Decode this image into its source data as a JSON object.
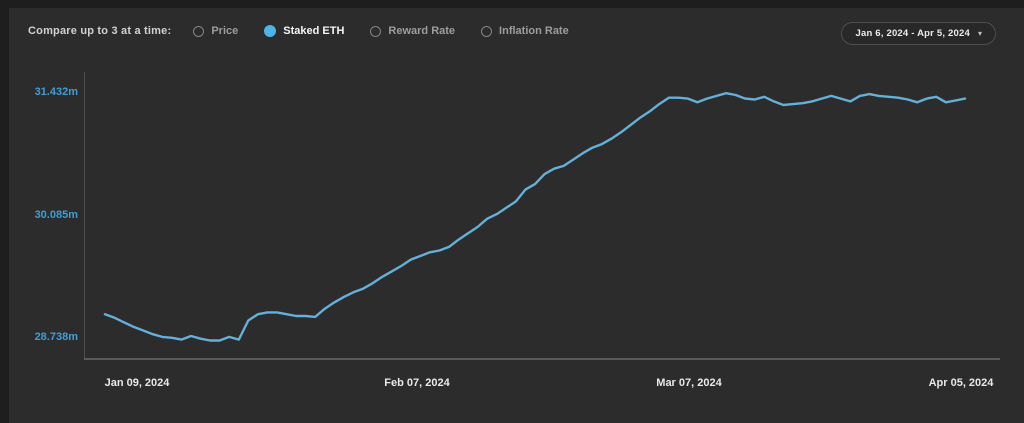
{
  "compare_bar": {
    "label": "Compare up to 3 at a time:",
    "options": [
      {
        "label": "Price",
        "selected": false
      },
      {
        "label": "Staked ETH",
        "selected": true
      },
      {
        "label": "Reward Rate",
        "selected": false
      },
      {
        "label": "Inflation Rate",
        "selected": false
      }
    ],
    "date_range": {
      "label": "Jan 6, 2024 - Apr 5, 2024",
      "caret": "▾"
    }
  },
  "colors": {
    "accent_blue": "#4cb4e8",
    "y_label_blue": "#3d9ed6",
    "line_blue": "#64b0d8",
    "panel_background": "#2c2c2c",
    "frame_edge": "#1e1e1e",
    "axis_gray": "#555555"
  },
  "chart_data": {
    "type": "line",
    "title": "",
    "xlabel": "",
    "ylabel": "",
    "grid": "off",
    "legend": "none",
    "x_ticks": [
      "Jan 09, 2024",
      "Feb 07, 2024",
      "Mar 07, 2024",
      "Apr 05, 2024"
    ],
    "y_ticks": [
      {
        "label": "31.432m",
        "value": 31.432
      },
      {
        "label": "30.085m",
        "value": 30.085
      },
      {
        "label": "28.738m",
        "value": 28.738
      }
    ],
    "ylim_visible": [
      28.51,
      31.66
    ],
    "series": [
      {
        "name": "Staked ETH",
        "unit": "million ETH",
        "start_date": "Jan 6, 2024",
        "end_date": "Apr 5, 2024",
        "interval": "daily",
        "values": [
          29.0,
          28.96,
          28.91,
          28.86,
          28.82,
          28.78,
          28.75,
          28.74,
          28.72,
          28.76,
          28.73,
          28.71,
          28.71,
          28.75,
          28.72,
          28.93,
          29.0,
          29.02,
          29.02,
          29.0,
          28.98,
          28.98,
          28.97,
          29.06,
          29.13,
          29.19,
          29.24,
          29.28,
          29.34,
          29.41,
          29.47,
          29.53,
          29.6,
          29.64,
          29.68,
          29.7,
          29.74,
          29.82,
          29.89,
          29.96,
          30.05,
          30.1,
          30.17,
          30.24,
          30.37,
          30.43,
          30.54,
          30.6,
          30.63,
          30.7,
          30.77,
          30.83,
          30.87,
          30.93,
          31.0,
          31.08,
          31.16,
          31.23,
          31.31,
          31.38,
          31.38,
          31.37,
          31.33,
          31.37,
          31.4,
          31.43,
          31.41,
          31.37,
          31.36,
          31.39,
          31.34,
          31.3,
          31.31,
          31.32,
          31.34,
          31.37,
          31.4,
          31.37,
          31.34,
          31.4,
          31.42,
          31.4,
          31.39,
          31.38,
          31.36,
          31.33,
          31.37,
          31.39,
          31.33,
          31.35,
          31.37
        ]
      }
    ]
  }
}
